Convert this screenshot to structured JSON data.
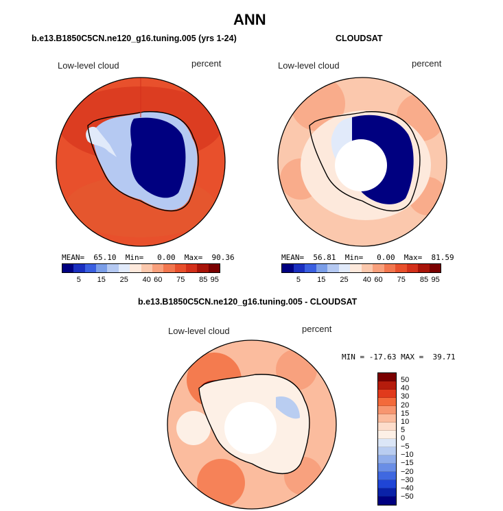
{
  "page": {
    "title": "ANN",
    "section_title": "b.e13.B1850C5CN.ne120_g16.tuning.005 - CLOUDSAT"
  },
  "panels": {
    "model": {
      "subtitle": "b.e13.B1850C5CN.ne120_g16.tuning.005 (yrs 1-24)",
      "variable": "Low-level cloud",
      "units": "percent",
      "stats": "MEAN=  65.10  Min=   0.00  Max=  90.36"
    },
    "obs": {
      "subtitle": "CLOUDSAT",
      "variable": "Low-level cloud",
      "units": "percent",
      "stats": "MEAN=  56.81  Min=   0.00  Max=  81.59"
    },
    "diff": {
      "variable": "Low-level cloud",
      "units": "percent",
      "stats": "MIN = -17.63 MAX =  39.71"
    }
  },
  "colorbar_abs": {
    "colors": [
      "#000080",
      "#1a2fbf",
      "#3a5fe0",
      "#7b9ee8",
      "#b5c9f2",
      "#e1eafa",
      "#fde9dc",
      "#fbc8ad",
      "#f8a07c",
      "#f2774f",
      "#e8502c",
      "#d3301a",
      "#a81409",
      "#7a0000"
    ],
    "labels": [
      "5",
      "15",
      "25",
      "40",
      "60",
      "75",
      "85",
      "95"
    ]
  },
  "colorbar_diff": {
    "colors": [
      "#7a0000",
      "#b51c0c",
      "#e13a1c",
      "#f36a3b",
      "#f79670",
      "#fbbc9e",
      "#fdddcb",
      "#fdf0e6",
      "#dbe6f7",
      "#b9cdf1",
      "#91aeeb",
      "#6a8ee6",
      "#3f68e0",
      "#1f45d6",
      "#0a22a8",
      "#000080"
    ],
    "labels": [
      "50",
      "40",
      "30",
      "20",
      "15",
      "10",
      "5",
      "0",
      "−5",
      "−10",
      "−15",
      "−20",
      "−30",
      "−40",
      "−50"
    ]
  },
  "colors": {
    "ocean_model": "#e8502c",
    "ocean_obs": "#fbc8ad",
    "ocean_diff": "#f8a07c",
    "ice_low": "#000080",
    "coast": "#000000"
  }
}
